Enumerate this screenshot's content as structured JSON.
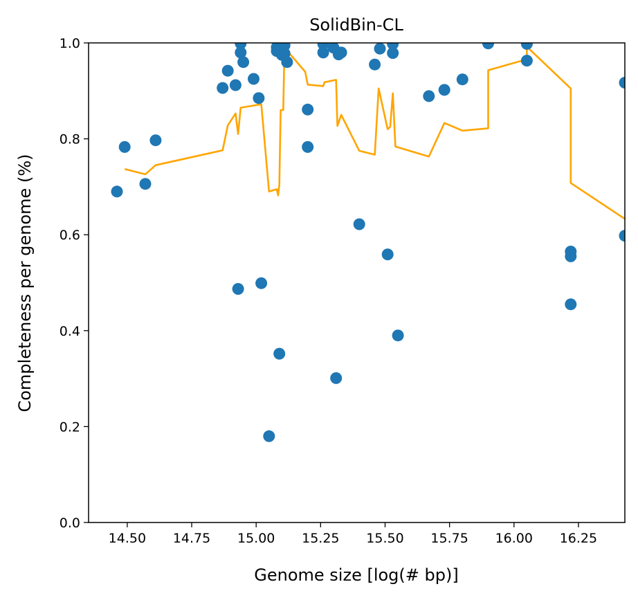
{
  "chart_data": {
    "type": "scatter",
    "title": "SolidBin-CL",
    "xlabel": "Genome size [log(# bp)]",
    "ylabel": "Completeness per genome (%)",
    "xlim": [
      14.35,
      16.43
    ],
    "ylim": [
      0.0,
      1.0
    ],
    "xticks": [
      "14.50",
      "14.75",
      "15.00",
      "15.25",
      "15.50",
      "15.75",
      "16.00",
      "16.25"
    ],
    "xtick_values": [
      14.5,
      14.75,
      15.0,
      15.25,
      15.5,
      15.75,
      16.0,
      16.25
    ],
    "yticks": [
      "0.0",
      "0.2",
      "0.4",
      "0.6",
      "0.8",
      "1.0"
    ],
    "ytick_values": [
      0.0,
      0.2,
      0.4,
      0.6,
      0.8,
      1.0
    ],
    "grid": false,
    "series": [
      {
        "kind": "scatter",
        "color": "#1f77b4",
        "points": [
          [
            14.46,
            0.69
          ],
          [
            14.49,
            0.783
          ],
          [
            14.57,
            0.706
          ],
          [
            14.61,
            0.797
          ],
          [
            14.87,
            0.906
          ],
          [
            14.89,
            0.942
          ],
          [
            14.92,
            0.912
          ],
          [
            14.93,
            0.487
          ],
          [
            14.94,
            0.999
          ],
          [
            14.94,
            0.98
          ],
          [
            14.95,
            0.96
          ],
          [
            14.99,
            0.925
          ],
          [
            15.01,
            0.885
          ],
          [
            15.02,
            0.499
          ],
          [
            15.05,
            0.18
          ],
          [
            15.08,
            0.991
          ],
          [
            15.08,
            0.983
          ],
          [
            15.09,
            0.352
          ],
          [
            15.1,
            0.985
          ],
          [
            15.1,
            0.975
          ],
          [
            15.11,
            0.995
          ],
          [
            15.11,
            0.978
          ],
          [
            15.12,
            0.96
          ],
          [
            15.2,
            0.861
          ],
          [
            15.2,
            0.783
          ],
          [
            15.26,
            0.998
          ],
          [
            15.26,
            0.98
          ],
          [
            15.3,
            0.99
          ],
          [
            15.31,
            0.301
          ],
          [
            15.32,
            0.976
          ],
          [
            15.33,
            0.98
          ],
          [
            15.4,
            0.622
          ],
          [
            15.46,
            0.955
          ],
          [
            15.48,
            0.988
          ],
          [
            15.51,
            0.559
          ],
          [
            15.53,
            0.998
          ],
          [
            15.53,
            0.979
          ],
          [
            15.55,
            0.39
          ],
          [
            15.67,
            0.889
          ],
          [
            15.73,
            0.902
          ],
          [
            15.8,
            0.924
          ],
          [
            15.9,
            0.999
          ],
          [
            16.05,
            0.998
          ],
          [
            16.05,
            0.963
          ],
          [
            16.22,
            0.565
          ],
          [
            16.22,
            0.555
          ],
          [
            16.22,
            0.455
          ],
          [
            16.43,
            0.917
          ],
          [
            16.43,
            0.598
          ]
        ]
      },
      {
        "kind": "line",
        "color": "#ffa500",
        "points": [
          [
            14.49,
            0.737
          ],
          [
            14.57,
            0.726
          ],
          [
            14.61,
            0.745
          ],
          [
            14.87,
            0.776
          ],
          [
            14.89,
            0.828
          ],
          [
            14.92,
            0.853
          ],
          [
            14.93,
            0.81
          ],
          [
            14.94,
            0.865
          ],
          [
            15.02,
            0.872
          ],
          [
            15.05,
            0.69
          ],
          [
            15.08,
            0.695
          ],
          [
            15.085,
            0.682
          ],
          [
            15.09,
            0.705
          ],
          [
            15.095,
            0.86
          ],
          [
            15.105,
            0.86
          ],
          [
            15.11,
            0.99
          ],
          [
            15.19,
            0.94
          ],
          [
            15.2,
            0.913
          ],
          [
            15.26,
            0.91
          ],
          [
            15.265,
            0.918
          ],
          [
            15.31,
            0.923
          ],
          [
            15.315,
            0.827
          ],
          [
            15.33,
            0.85
          ],
          [
            15.4,
            0.775
          ],
          [
            15.46,
            0.767
          ],
          [
            15.475,
            0.905
          ],
          [
            15.51,
            0.82
          ],
          [
            15.52,
            0.825
          ],
          [
            15.53,
            0.895
          ],
          [
            15.54,
            0.784
          ],
          [
            15.67,
            0.763
          ],
          [
            15.73,
            0.833
          ],
          [
            15.8,
            0.817
          ],
          [
            15.9,
            0.822
          ],
          [
            15.9,
            0.943
          ],
          [
            16.05,
            0.966
          ],
          [
            16.05,
            0.992
          ],
          [
            16.22,
            0.905
          ],
          [
            16.22,
            0.708
          ],
          [
            16.43,
            0.633
          ]
        ]
      }
    ]
  }
}
